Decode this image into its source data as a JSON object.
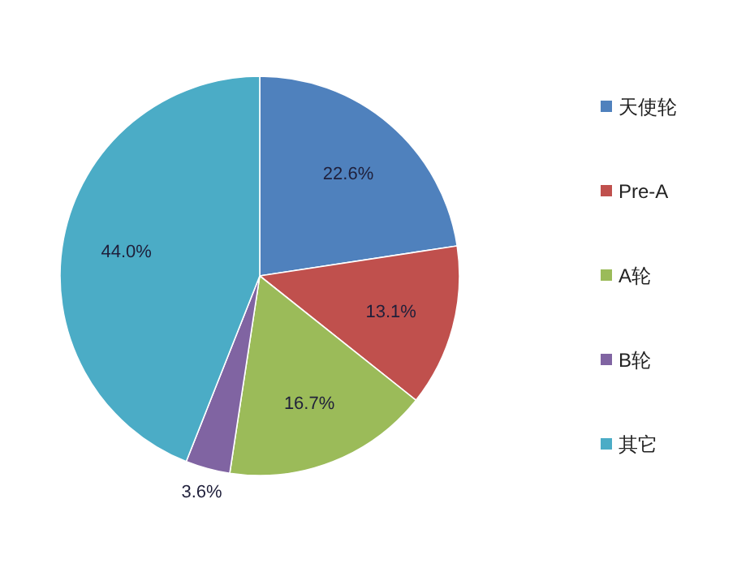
{
  "chart_data": {
    "type": "pie",
    "categories": [
      "天使轮",
      "Pre-A",
      "A轮",
      "B轮",
      "其它"
    ],
    "values": [
      22.6,
      13.1,
      16.7,
      3.6,
      44.0
    ],
    "colors": [
      "#4f81bd",
      "#c0504d",
      "#9bbb59",
      "#8064a2",
      "#4bacc6"
    ],
    "value_labels": [
      "22.6%",
      "13.1%",
      "16.7%",
      "3.6%",
      "44.0%"
    ],
    "legend": "right"
  }
}
